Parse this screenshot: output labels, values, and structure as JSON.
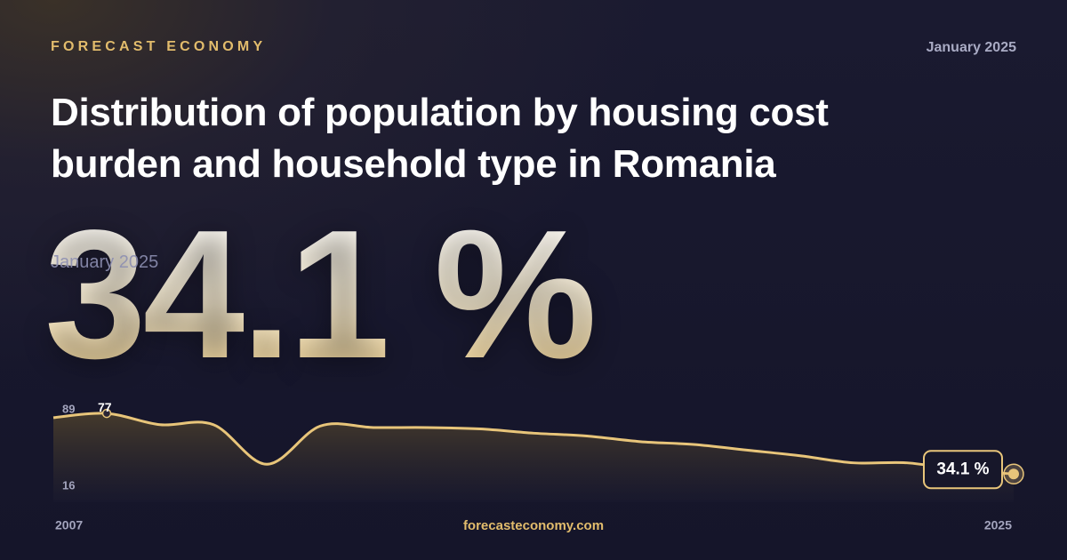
{
  "brand": "FORECAST ECONOMY",
  "date": "January 2025",
  "title": "Distribution of population by housing cost burden and household type in Romania",
  "footer": "forecasteconomy.com",
  "chart_data": {
    "type": "line",
    "x": [
      2007,
      2008,
      2009,
      2010,
      2011,
      2012,
      2013,
      2014,
      2015,
      2016,
      2017,
      2018,
      2019,
      2020,
      2021,
      2022,
      2023,
      2024,
      2025
    ],
    "values": [
      74,
      77,
      69,
      69,
      41,
      68,
      67,
      67,
      66,
      63,
      61,
      57,
      55,
      51,
      47,
      42,
      42,
      37,
      34.1
    ],
    "value_labels": [
      null,
      null,
      null,
      null,
      null,
      null,
      null,
      null,
      null,
      null,
      null,
      null,
      null,
      null,
      null,
      null,
      null,
      null,
      "34.1 %"
    ],
    "color": "#e8c57a",
    "xlim": [
      2007,
      2025
    ],
    "xticks": [
      2007,
      2025
    ],
    "ylim": [
      16,
      89
    ],
    "yticks": [
      89,
      16
    ]
  }
}
